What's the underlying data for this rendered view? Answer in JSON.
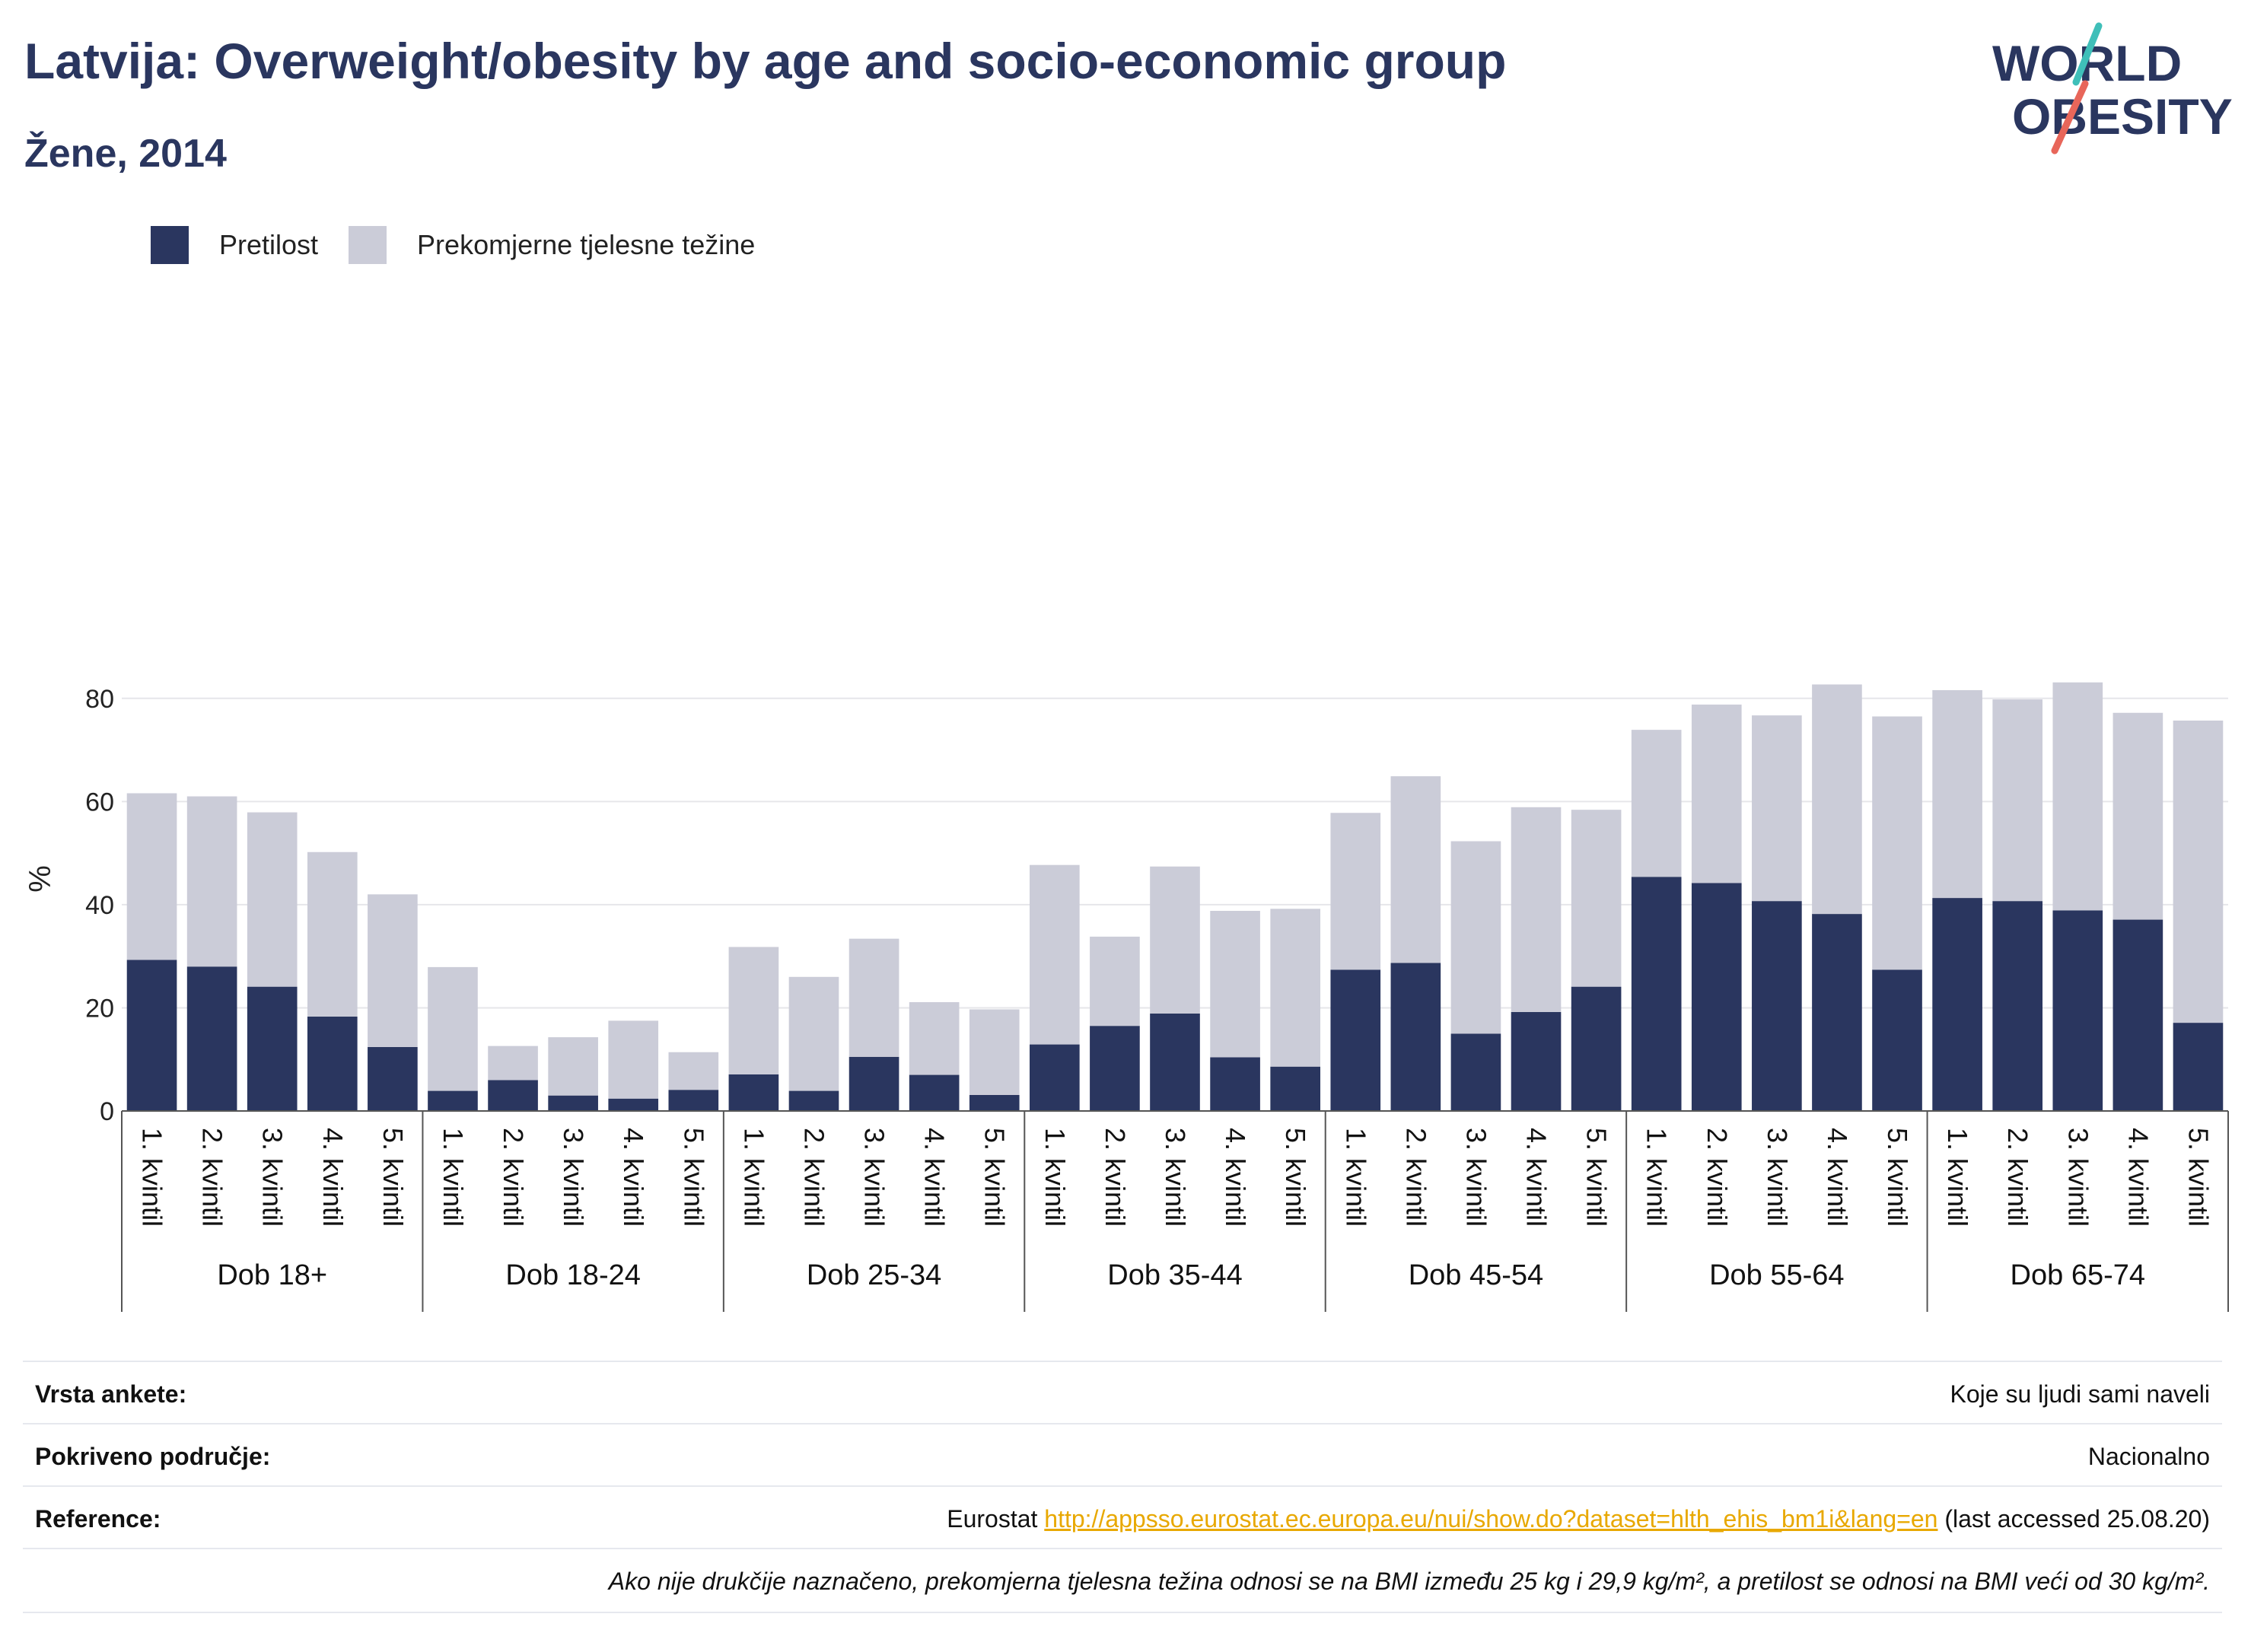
{
  "header": {
    "title": "Latvija: Overweight/obesity by age and socio-economic group",
    "subtitle": "Žene, 2014"
  },
  "logo": {
    "line1": "WORLD",
    "line2": "OBESITY"
  },
  "colors": {
    "obesity": "#2a365f",
    "overweight": "#cbccd8",
    "grid": "#e6e6ea",
    "link": "#e8a800"
  },
  "chart_data": {
    "type": "bar",
    "stacked": true,
    "ylabel": "%",
    "ylim": [
      0,
      90
    ],
    "yticks": [
      0,
      20,
      40,
      60,
      80
    ],
    "grid": true,
    "legend_position": "top-left",
    "groups": [
      "Dob 18+",
      "Dob 18-24",
      "Dob 25-34",
      "Dob 35-44",
      "Dob 45-54",
      "Dob 55-64",
      "Dob 65-74"
    ],
    "categories": [
      "1. kvintil",
      "2. kvintil",
      "3. kvintil",
      "4. kvintil",
      "5. kvintil"
    ],
    "series": [
      {
        "name": "Pretilost",
        "values": [
          [
            29.3,
            28.0,
            24.1,
            18.3,
            12.4
          ],
          [
            3.9,
            6.0,
            3.0,
            2.4,
            4.1
          ],
          [
            7.1,
            3.9,
            10.5,
            7.0,
            3.1
          ],
          [
            12.9,
            16.5,
            18.9,
            10.4,
            8.6
          ],
          [
            27.4,
            28.7,
            15.0,
            19.2,
            24.1
          ],
          [
            45.4,
            44.2,
            40.7,
            38.2,
            27.4
          ],
          [
            41.3,
            40.7,
            38.9,
            37.1,
            17.1
          ]
        ]
      },
      {
        "name": "Prekomjerne tjelesne težine",
        "values": [
          [
            32.3,
            33.0,
            33.8,
            31.9,
            29.6
          ],
          [
            24.0,
            6.6,
            11.3,
            15.1,
            7.3
          ],
          [
            24.7,
            22.1,
            22.9,
            14.1,
            16.6
          ],
          [
            34.8,
            17.3,
            28.5,
            28.4,
            30.6
          ],
          [
            30.4,
            36.2,
            37.3,
            39.7,
            34.3
          ],
          [
            28.5,
            34.6,
            36.0,
            44.5,
            49.1
          ],
          [
            40.3,
            39.1,
            44.2,
            40.1,
            58.6
          ]
        ]
      }
    ]
  },
  "footer": {
    "survey_label": "Vrsta ankete:",
    "survey_value": "Koje su ljudi sami naveli",
    "coverage_label": "Pokriveno područje:",
    "coverage_value": "Nacionalno",
    "reference_label": "Reference:",
    "reference_source": "Eurostat",
    "reference_url": "http://appsso.eurostat.ec.europa.eu/nui/show.do?dataset=hlth_ehis_bm1i&lang=en",
    "reference_accessed": "(last accessed 25.08.20)",
    "note": "Ako nije drukčije naznačeno, prekomjerna tjelesna težina odnosi se na BMI između 25 kg i 29,9 kg/m², a pretilost se odnosi na BMI veći od 30 kg/m²."
  }
}
